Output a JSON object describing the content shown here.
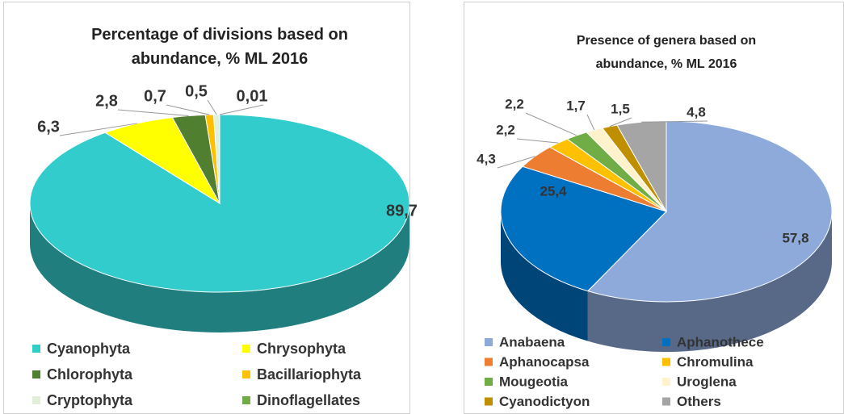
{
  "chart_data": [
    {
      "type": "pie3d",
      "title": "Percentage of divisions  based on abundance, % ML 2016",
      "categories": [
        "Cyanophyta",
        "Chrysophyta",
        "Chlorophyta",
        "Bacillariophyta",
        "Cryptophyta",
        "Dinoflagellates"
      ],
      "values": [
        89.7,
        6.3,
        2.8,
        0.7,
        0.5,
        0.01
      ],
      "value_labels": [
        "89,7",
        "6,3",
        "2,8",
        "0,7",
        "0,5",
        "0,01"
      ],
      "colors": [
        "#33cccc",
        "#ffff00",
        "#4f7f2f",
        "#ffc000",
        "#e2f0d9",
        "#70ad47"
      ]
    },
    {
      "type": "pie3d",
      "title": "Presence of genera based on abundance, %  ML 2016",
      "categories": [
        "Anabaena",
        "Aphanothece",
        "Aphanocapsa",
        "Chromulina",
        "Mougeotia",
        "Uroglena",
        "Cyanodictyon",
        "Others"
      ],
      "values": [
        57.8,
        25.4,
        4.3,
        2.2,
        2.2,
        1.7,
        1.5,
        4.8
      ],
      "value_labels": [
        "57,8",
        "25,4",
        "4,3",
        "2,2",
        "2,2",
        "1,7",
        "1,5",
        "4,8"
      ],
      "colors": [
        "#8eaadb",
        "#0070c0",
        "#ed7d31",
        "#ffc000",
        "#70ad47",
        "#fff2cc",
        "#bf8f00",
        "#a5a5a5"
      ]
    }
  ]
}
